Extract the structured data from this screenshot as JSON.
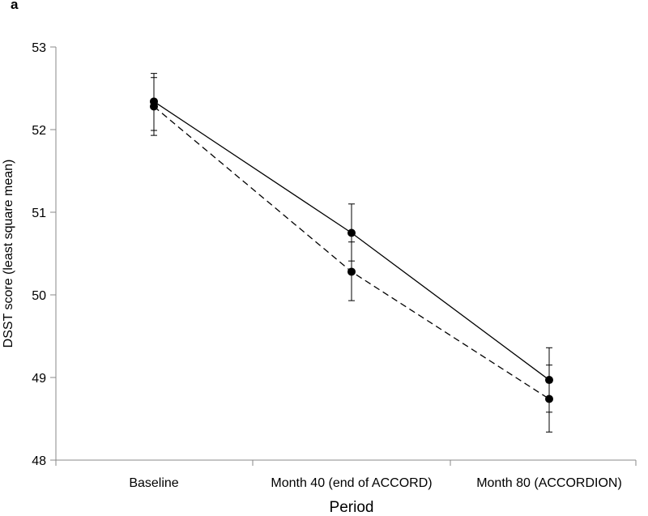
{
  "panel_label": "a",
  "chart_data": {
    "type": "line",
    "title": "",
    "xlabel": "Period",
    "ylabel": "DSST score (least square mean)",
    "categories": [
      "Baseline",
      "Month 40 (end of ACCORD)",
      "Month 80 (ACCORDION)"
    ],
    "ylim": [
      48,
      53
    ],
    "yticks": [
      "48",
      "49",
      "50",
      "51",
      "52",
      "53"
    ],
    "grid": false,
    "legend": "none",
    "series": [
      {
        "style": "solid",
        "color": "#000000",
        "values": [
          52.34,
          50.75,
          48.97
        ],
        "error_low": [
          51.99,
          50.41,
          48.58
        ],
        "error_high": [
          52.68,
          51.1,
          49.36
        ]
      },
      {
        "style": "dashed",
        "color": "#000000",
        "values": [
          52.28,
          50.28,
          48.74
        ],
        "error_low": [
          51.93,
          49.93,
          48.34
        ],
        "error_high": [
          52.63,
          50.64,
          49.15
        ]
      }
    ]
  }
}
